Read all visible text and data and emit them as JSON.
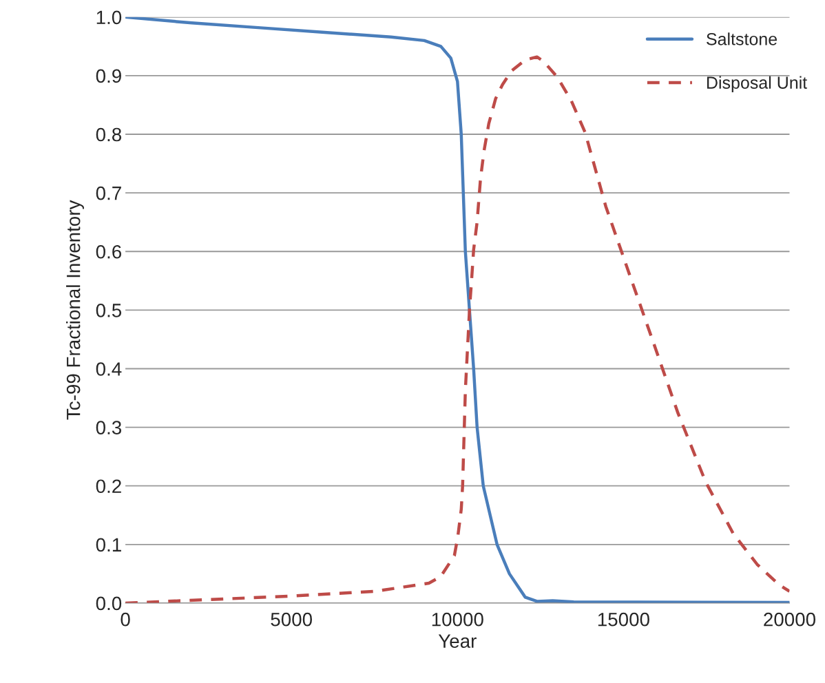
{
  "chart_data": {
    "type": "line",
    "xlabel": "Year",
    "ylabel": "Tc-99 Fractional Inventory",
    "xlim": [
      0,
      20000
    ],
    "xticks": [
      0,
      5000,
      10000,
      15000,
      20000
    ],
    "ylim": [
      0,
      1.0
    ],
    "yticks": [
      {
        "value": 0,
        "label": "0.0"
      },
      {
        "value": 0.1,
        "label": "0.1"
      },
      {
        "value": 0.2,
        "label": "0.2"
      },
      {
        "value": 0.3,
        "label": "0.3"
      },
      {
        "value": 0.4,
        "label": "0.4"
      },
      {
        "value": 0.5,
        "label": "0.5"
      },
      {
        "value": 0.6,
        "label": "0.6"
      },
      {
        "value": 0.7,
        "label": "0.7"
      },
      {
        "value": 0.8,
        "label": "0.8"
      },
      {
        "value": 0.9,
        "label": "0.9"
      },
      {
        "value": 1.0,
        "label": "1.0"
      }
    ],
    "grid": "y",
    "legend": "top right",
    "series": [
      {
        "name": "Saltstone",
        "color": "#4a7ebb",
        "line_style": "solid",
        "x": [
          0,
          2000,
          4000,
          6000,
          8000,
          9000,
          9500,
          9800,
          10000,
          10114,
          10176,
          10238,
          10362,
          10487,
          10591,
          10777,
          11192,
          11565,
          12041,
          12394,
          12870,
          13500,
          20000
        ],
        "values": [
          1.0,
          0.99,
          0.982,
          0.974,
          0.966,
          0.96,
          0.95,
          0.93,
          0.89,
          0.8,
          0.7,
          0.6,
          0.5,
          0.4,
          0.3,
          0.2,
          0.1,
          0.05,
          0.01,
          0.003,
          0.004,
          0.002,
          0.001
        ]
      },
      {
        "name": "Disposal Unit",
        "color": "#be4b48",
        "line_style": "dashed",
        "x": [
          0,
          5000,
          7500,
          9140,
          9492,
          9907,
          10010,
          10114,
          10155,
          10238,
          10362,
          10425,
          10487,
          10591,
          10632,
          10694,
          10798,
          10943,
          11150,
          11358,
          11627,
          12041,
          12394,
          12601,
          13015,
          13430,
          13845,
          14466,
          15192,
          15917,
          16642,
          17472,
          18301,
          19026,
          19689,
          20000
        ],
        "values": [
          0,
          0.012,
          0.02,
          0.034,
          0.045,
          0.081,
          0.113,
          0.16,
          0.2,
          0.363,
          0.5,
          0.551,
          0.603,
          0.65,
          0.68,
          0.724,
          0.771,
          0.818,
          0.861,
          0.885,
          0.908,
          0.927,
          0.932,
          0.924,
          0.897,
          0.857,
          0.803,
          0.677,
          0.559,
          0.442,
          0.324,
          0.207,
          0.119,
          0.066,
          0.031,
          0.02
        ]
      }
    ]
  }
}
